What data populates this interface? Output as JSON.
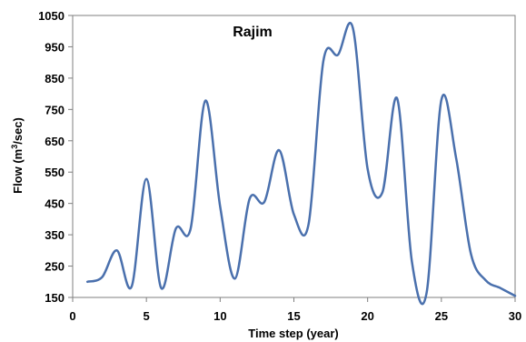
{
  "chart_data": {
    "type": "line",
    "title": "Rajim",
    "xlabel": "Time step  (year)",
    "ylabel_main": "Flow (m",
    "ylabel_sup": "3",
    "ylabel_end": "/sec)",
    "xlim": [
      0,
      30
    ],
    "ylim": [
      150,
      1050
    ],
    "xticks": [
      0,
      5,
      10,
      15,
      20,
      25,
      30
    ],
    "yticks": [
      150,
      250,
      350,
      450,
      550,
      650,
      750,
      850,
      950,
      1050
    ],
    "grid": false,
    "line_color": "#4a70ad",
    "series": [
      {
        "x": [
          1,
          2,
          3,
          4,
          5,
          6,
          7,
          8,
          9,
          10,
          11,
          12,
          13,
          14,
          15,
          16,
          17,
          18,
          19,
          20,
          21,
          22,
          23,
          24,
          25,
          26,
          27,
          28,
          29,
          30
        ],
        "values": [
          200,
          215,
          300,
          185,
          528,
          180,
          370,
          370,
          778,
          440,
          210,
          465,
          455,
          620,
          415,
          385,
          905,
          925,
          1010,
          560,
          485,
          785,
          265,
          165,
          780,
          595,
          290,
          205,
          180,
          155
        ]
      }
    ]
  }
}
